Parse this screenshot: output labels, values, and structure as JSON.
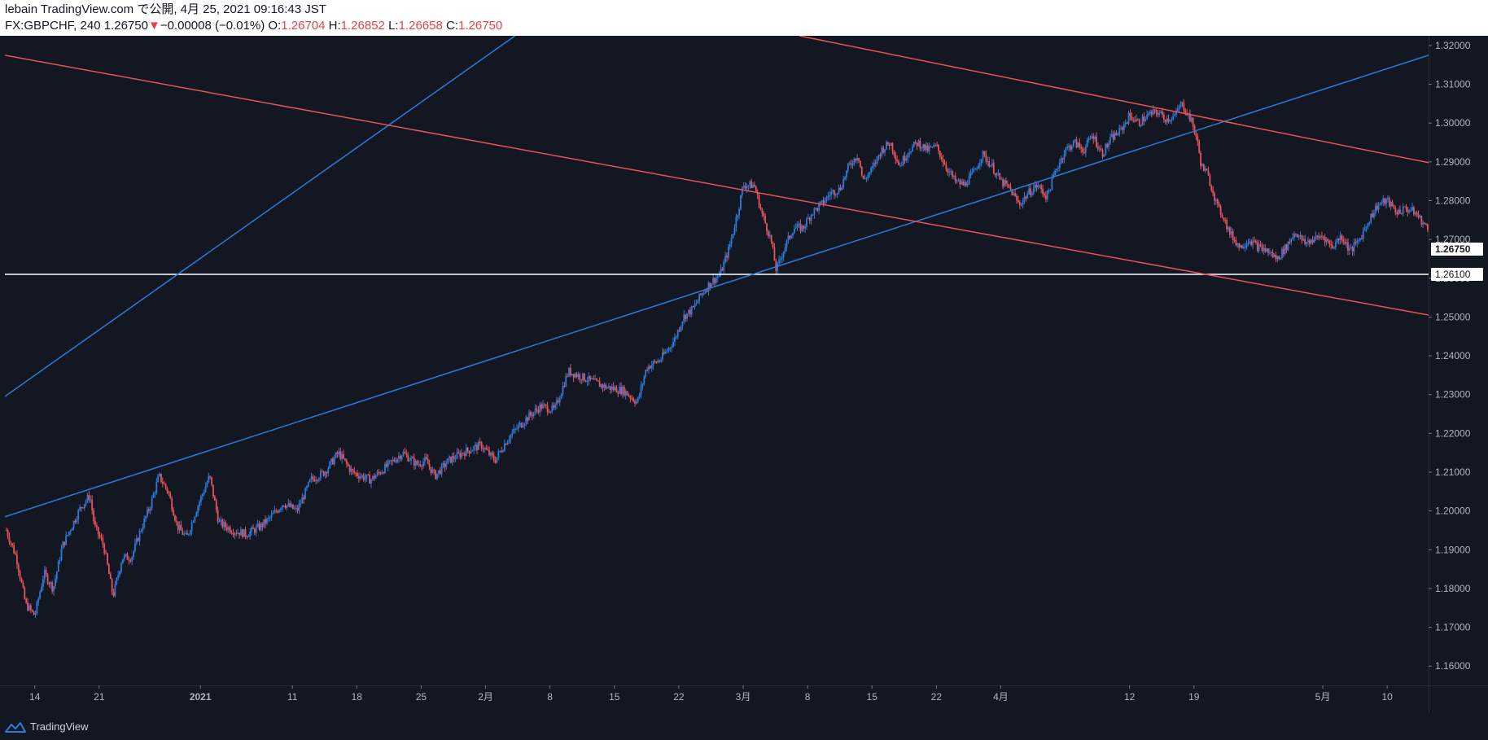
{
  "header": {
    "line1": "lebain TradingView.com で公開, 4月 25, 2021 09:16:43 JST",
    "symbol": "FX:GBPCHF, 240",
    "last": "1.26750",
    "arrow": "▼",
    "change": "−0.00008 (−0.01%)",
    "o_label": "O:",
    "o_value": "1.26704",
    "h_label": "H:",
    "h_value": "1.26852",
    "l_label": "L:",
    "l_value": "1.26658",
    "c_label": "C:",
    "c_value": "1.26750"
  },
  "footer": {
    "brand": "TradingView",
    "logo_icon": "tradingview-logo-icon"
  },
  "colors": {
    "background": "#131722",
    "up": "#2f7ad8",
    "down": "#e8535a",
    "blue_line": "#2f7ad8",
    "red_line": "#e8535a",
    "support_line": "#ffffff",
    "axis_text": "#b2b5be",
    "price_tag_bg": "#ffffff",
    "price_tag_text": "#131722"
  },
  "chart_data": {
    "type": "candlestick",
    "symbol": "FX:GBPCHF",
    "interval": "240",
    "ylim": [
      1.155,
      1.3225
    ],
    "y_ticks": [
      "1.16000",
      "1.17000",
      "1.18000",
      "1.19000",
      "1.20000",
      "1.21000",
      "1.22000",
      "1.23000",
      "1.24000",
      "1.25000",
      "1.26000",
      "1.27000",
      "1.28000",
      "1.29000",
      "1.30000",
      "1.31000",
      "1.32000"
    ],
    "x_ticks": [
      "14",
      "21",
      "2021",
      "11",
      "18",
      "25",
      "2月",
      "8",
      "15",
      "22",
      "3月",
      "8",
      "15",
      "22",
      "4月",
      "12",
      "19",
      "5月",
      "10"
    ],
    "x_tick_days": [
      0,
      7,
      18,
      28,
      35,
      42,
      49,
      56,
      63,
      70,
      77,
      84,
      91,
      98,
      105,
      119,
      126,
      140,
      147
    ],
    "xlim_days": [
      -3.25,
      151.5
    ],
    "grid": false,
    "price_labels": [
      {
        "value": 1.2675,
        "text": "1.26750"
      },
      {
        "value": 1.261,
        "text": "1.26100"
      }
    ],
    "price_path": [
      [
        -3.1,
        1.195
      ],
      [
        -2,
        1.188
      ],
      [
        -1,
        1.176
      ],
      [
        0,
        1.173
      ],
      [
        1,
        1.184
      ],
      [
        2,
        1.18
      ],
      [
        3,
        1.191
      ],
      [
        4,
        1.196
      ],
      [
        5,
        1.201
      ],
      [
        6,
        1.204
      ],
      [
        6.5,
        1.196
      ],
      [
        7.5,
        1.191
      ],
      [
        8.5,
        1.178
      ],
      [
        9.5,
        1.188
      ],
      [
        10.5,
        1.188
      ],
      [
        11.5,
        1.195
      ],
      [
        12.5,
        1.201
      ],
      [
        13.5,
        1.209
      ],
      [
        14.5,
        1.205
      ],
      [
        15.5,
        1.196
      ],
      [
        16.5,
        1.193
      ],
      [
        17.5,
        1.2
      ],
      [
        19,
        1.209
      ],
      [
        20,
        1.197
      ],
      [
        21.5,
        1.195
      ],
      [
        23,
        1.194
      ],
      [
        24.5,
        1.196
      ],
      [
        25.5,
        1.198
      ],
      [
        27,
        1.202
      ],
      [
        28.5,
        1.2
      ],
      [
        30,
        1.208
      ],
      [
        31.5,
        1.21
      ],
      [
        33,
        1.215
      ],
      [
        34.5,
        1.21
      ],
      [
        36.5,
        1.208
      ],
      [
        38,
        1.211
      ],
      [
        40,
        1.215
      ],
      [
        41.5,
        1.212
      ],
      [
        42.5,
        1.213
      ],
      [
        43.5,
        1.209
      ],
      [
        45,
        1.213
      ],
      [
        46.5,
        1.215
      ],
      [
        48.5,
        1.217
      ],
      [
        50,
        1.213
      ],
      [
        51.5,
        1.219
      ],
      [
        53.5,
        1.224
      ],
      [
        55,
        1.227
      ],
      [
        56.5,
        1.226
      ],
      [
        58,
        1.236
      ],
      [
        60,
        1.234
      ],
      [
        62,
        1.232
      ],
      [
        64,
        1.231
      ],
      [
        65.5,
        1.228
      ],
      [
        66.5,
        1.237
      ],
      [
        68,
        1.239
      ],
      [
        69.5,
        1.244
      ],
      [
        70.5,
        1.25
      ],
      [
        71.5,
        1.252
      ],
      [
        72.5,
        1.256
      ],
      [
        73.5,
        1.259
      ],
      [
        74.5,
        1.261
      ],
      [
        75.5,
        1.268
      ],
      [
        76.5,
        1.278
      ],
      [
        77,
        1.284
      ],
      [
        78.2,
        1.284
      ],
      [
        79,
        1.277
      ],
      [
        80,
        1.27
      ],
      [
        80.6,
        1.262
      ],
      [
        81.5,
        1.268
      ],
      [
        82.5,
        1.273
      ],
      [
        83.5,
        1.273
      ],
      [
        84.5,
        1.277
      ],
      [
        85.5,
        1.279
      ],
      [
        86.5,
        1.282
      ],
      [
        87.5,
        1.283
      ],
      [
        88.5,
        1.289
      ],
      [
        89.5,
        1.292
      ],
      [
        90,
        1.285
      ],
      [
        91,
        1.288
      ],
      [
        92,
        1.293
      ],
      [
        93,
        1.295
      ],
      [
        94,
        1.289
      ],
      [
        95,
        1.293
      ],
      [
        96,
        1.295
      ],
      [
        97,
        1.293
      ],
      [
        98,
        1.294
      ],
      [
        99,
        1.289
      ],
      [
        100,
        1.285
      ],
      [
        101,
        1.284
      ],
      [
        102,
        1.287
      ],
      [
        103,
        1.292
      ],
      [
        104,
        1.289
      ],
      [
        105,
        1.285
      ],
      [
        106,
        1.283
      ],
      [
        107,
        1.279
      ],
      [
        108,
        1.282
      ],
      [
        109,
        1.284
      ],
      [
        110,
        1.281
      ],
      [
        111,
        1.288
      ],
      [
        112,
        1.293
      ],
      [
        113,
        1.295
      ],
      [
        114,
        1.293
      ],
      [
        115,
        1.297
      ],
      [
        116,
        1.292
      ],
      [
        117,
        1.296
      ],
      [
        118,
        1.298
      ],
      [
        119,
        1.302
      ],
      [
        120,
        1.3
      ],
      [
        121,
        1.302
      ],
      [
        122,
        1.303
      ],
      [
        123,
        1.301
      ],
      [
        124,
        1.302
      ],
      [
        124.6,
        1.305
      ],
      [
        125.2,
        1.303
      ],
      [
        125.8,
        1.3
      ],
      [
        126.3,
        1.296
      ],
      [
        126.8,
        1.289
      ],
      [
        127.4,
        1.287
      ],
      [
        128,
        1.283
      ],
      [
        128.6,
        1.278
      ],
      [
        129.2,
        1.276
      ],
      [
        129.8,
        1.272
      ],
      [
        130.4,
        1.27
      ],
      [
        131,
        1.268
      ],
      [
        132,
        1.27
      ],
      [
        133,
        1.268
      ],
      [
        134,
        1.267
      ],
      [
        135,
        1.265
      ],
      [
        136,
        1.268
      ],
      [
        137,
        1.272
      ],
      [
        138,
        1.269
      ],
      [
        139,
        1.27
      ],
      [
        140,
        1.271
      ],
      [
        141,
        1.268
      ],
      [
        142,
        1.271
      ],
      [
        143,
        1.267
      ],
      [
        144,
        1.27
      ],
      [
        145,
        1.275
      ],
      [
        146,
        1.279
      ],
      [
        147,
        1.28
      ],
      [
        148,
        1.277
      ],
      [
        149,
        1.278
      ],
      [
        150,
        1.277
      ],
      [
        151,
        1.274
      ],
      [
        152,
        1.27
      ],
      [
        153,
        1.269
      ],
      [
        154,
        1.27
      ],
      [
        155,
        1.2675
      ]
    ],
    "trend_lines": [
      {
        "color": "blue",
        "p1": [
          -3.25,
          1.2295
        ],
        "p2": [
          52.2,
          1.3225
        ]
      },
      {
        "color": "blue",
        "p1": [
          -3.25,
          1.1985
        ],
        "p2": [
          151.5,
          1.3175
        ]
      },
      {
        "color": "red",
        "p1": [
          -3.25,
          1.3175
        ],
        "p2": [
          151.5,
          1.2505
        ]
      },
      {
        "color": "red",
        "p1": [
          83.1,
          1.3225
        ],
        "p2": [
          151.5,
          1.2898
        ]
      }
    ],
    "horizontal_lines": [
      {
        "value": 1.261,
        "color": "white"
      }
    ]
  }
}
